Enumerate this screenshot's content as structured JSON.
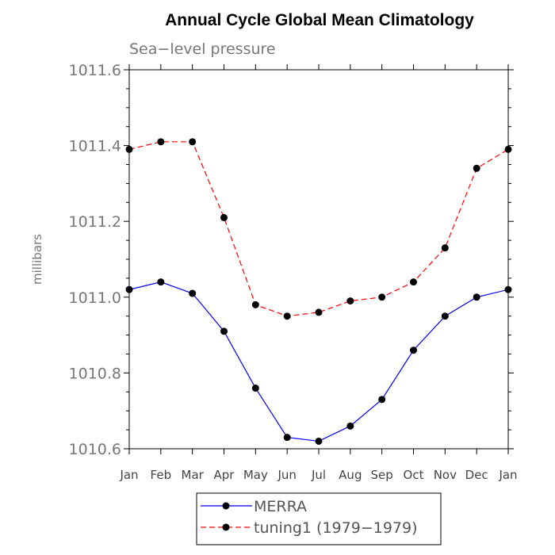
{
  "chart_data": {
    "type": "line",
    "title": "Annual Cycle Global Mean Climatology",
    "subtitle": "Sea−level pressure",
    "ylabel": "millibars",
    "xlabel": "",
    "categories": [
      "Jan",
      "Feb",
      "Mar",
      "Apr",
      "May",
      "Jun",
      "Jul",
      "Aug",
      "Sep",
      "Oct",
      "Nov",
      "Dec",
      "Jan"
    ],
    "ylim": [
      1010.6,
      1011.6
    ],
    "yticks": [
      "1010.6",
      "1010.8",
      "1011.0",
      "1011.2",
      "1011.4",
      "1011.6"
    ],
    "grid": false,
    "legend_position": "bottom-center",
    "series": [
      {
        "name": "MERRA",
        "color": "#0000ff",
        "line_style": "solid",
        "marker": "filled-circle",
        "values": [
          1011.02,
          1011.04,
          1011.01,
          1010.91,
          1010.76,
          1010.63,
          1010.62,
          1010.66,
          1010.73,
          1010.86,
          1010.95,
          1011.0,
          1011.02
        ]
      },
      {
        "name": "tuning1 (1979−1979)",
        "color": "#ff0000",
        "line_style": "dashed",
        "marker": "filled-circle",
        "values": [
          1011.39,
          1011.41,
          1011.41,
          1011.21,
          1010.98,
          1010.95,
          1010.96,
          1010.99,
          1011.0,
          1011.04,
          1011.13,
          1011.34,
          1011.39
        ]
      }
    ]
  }
}
